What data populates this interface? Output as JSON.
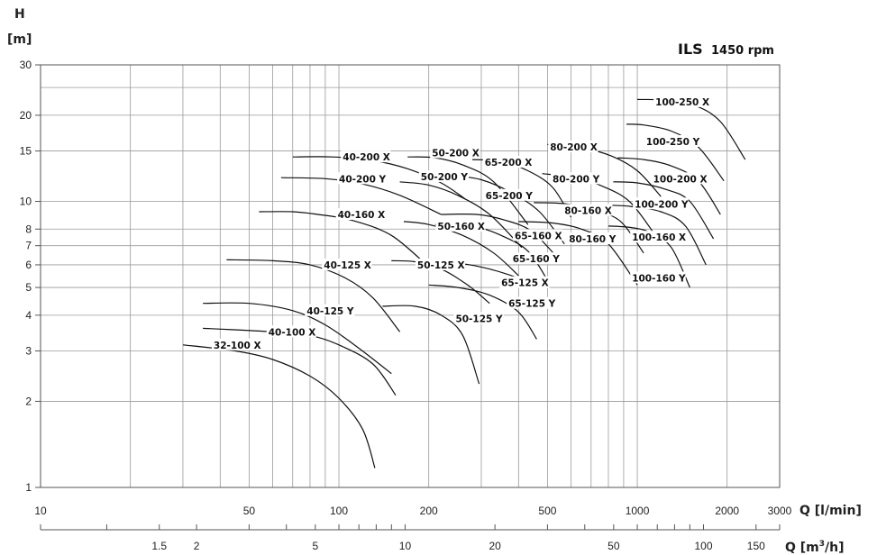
{
  "chart_data": {
    "type": "line",
    "title": "ILS",
    "subtitle": "1450 rpm",
    "y_axis": {
      "label_top": "H",
      "label_unit": "[m]",
      "scale": "log",
      "range": [
        1,
        30
      ],
      "ticks": [
        1,
        2,
        3,
        4,
        5,
        6,
        7,
        8,
        10,
        15,
        20,
        30
      ],
      "tick_labels": [
        "1",
        "2",
        "3",
        "4",
        "5",
        "6",
        "7",
        "8",
        "10",
        "15",
        "20",
        "30"
      ],
      "extra_gridlines": [
        25
      ]
    },
    "x_axis": {
      "label": "Q [l/min]",
      "scale": "log",
      "range": [
        10,
        3000
      ],
      "labeled_ticks": [
        10,
        50,
        100,
        200,
        500,
        1000,
        2000,
        3000
      ],
      "tick_labels": [
        "10",
        "50",
        "100",
        "200",
        "500",
        "1000",
        "2000",
        "3000"
      ],
      "gridlines": [
        20,
        30,
        40,
        50,
        60,
        70,
        80,
        90,
        100,
        200,
        300,
        400,
        500,
        600,
        700,
        800,
        900,
        1000,
        2000
      ]
    },
    "x2_axis": {
      "label": "Q [m³/h]",
      "label_base": "Q [m",
      "label_sup": "3",
      "label_tail": "/h]",
      "scale": "log",
      "ticks": [
        1,
        1.5,
        2,
        3,
        4,
        5,
        6,
        7,
        8,
        9,
        10,
        20,
        30,
        40,
        50,
        60,
        70,
        80,
        90,
        100,
        150
      ],
      "labeled_ticks": [
        1.5,
        2,
        5,
        10,
        20,
        50,
        100,
        150
      ],
      "tick_labels": [
        "1.5",
        "2",
        "5",
        "10",
        "20",
        "50",
        "100",
        "150"
      ]
    },
    "series": [
      {
        "name": "32-100 X",
        "points": [
          [
            30,
            3.15
          ],
          [
            45,
            3.0
          ],
          [
            60,
            2.8
          ],
          [
            80,
            2.45
          ],
          [
            100,
            2.05
          ],
          [
            120,
            1.6
          ],
          [
            132,
            1.17
          ]
        ],
        "label_at": [
          38,
          3.15
        ]
      },
      {
        "name": "40-100 X",
        "points": [
          [
            35,
            3.6
          ],
          [
            60,
            3.5
          ],
          [
            80,
            3.4
          ],
          [
            100,
            3.15
          ],
          [
            130,
            2.7
          ],
          [
            155,
            2.1
          ]
        ],
        "label_at": [
          58,
          3.5
        ]
      },
      {
        "name": "40-125 Y",
        "points": [
          [
            35,
            4.4
          ],
          [
            50,
            4.4
          ],
          [
            70,
            4.15
          ],
          [
            90,
            3.7
          ],
          [
            115,
            3.1
          ],
          [
            150,
            2.5
          ]
        ],
        "label_at": [
          78,
          4.15
        ]
      },
      {
        "name": "40-125 X",
        "points": [
          [
            42,
            6.25
          ],
          [
            60,
            6.2
          ],
          [
            80,
            6.0
          ],
          [
            105,
            5.4
          ],
          [
            130,
            4.6
          ],
          [
            160,
            3.5
          ]
        ],
        "label_at": [
          89,
          6.0
        ]
      },
      {
        "name": "40-160 X",
        "points": [
          [
            54,
            9.2
          ],
          [
            70,
            9.2
          ],
          [
            85,
            9.0
          ],
          [
            110,
            8.6
          ],
          [
            150,
            7.6
          ],
          [
            200,
            5.9
          ]
        ],
        "label_at": [
          99,
          9.0
        ]
      },
      {
        "name": "40-200 Y",
        "points": [
          [
            64,
            12.1
          ],
          [
            90,
            12.0
          ],
          [
            120,
            11.5
          ],
          [
            160,
            10.5
          ],
          [
            220,
            9.0
          ]
        ],
        "label_at": [
          100,
          12.0
        ]
      },
      {
        "name": "40-200 X",
        "points": [
          [
            70,
            14.3
          ],
          [
            95,
            14.3
          ],
          [
            130,
            13.9
          ],
          [
            170,
            13.0
          ],
          [
            220,
            11.6
          ],
          [
            265,
            10.2
          ]
        ],
        "label_at": [
          103,
          14.3
        ]
      },
      {
        "name": "50-125 Y",
        "points": [
          [
            140,
            4.3
          ],
          [
            180,
            4.3
          ],
          [
            220,
            4.0
          ],
          [
            260,
            3.4
          ],
          [
            295,
            2.3
          ]
        ],
        "label_at": [
          246,
          3.9
        ]
      },
      {
        "name": "50-125 X",
        "points": [
          [
            150,
            6.2
          ],
          [
            180,
            6.15
          ],
          [
            220,
            5.8
          ],
          [
            270,
            5.1
          ],
          [
            320,
            4.4
          ]
        ],
        "label_at": [
          183,
          6.0
        ]
      },
      {
        "name": "50-160 X",
        "points": [
          [
            165,
            8.5
          ],
          [
            200,
            8.3
          ],
          [
            260,
            7.6
          ],
          [
            330,
            6.6
          ],
          [
            400,
            5.5
          ]
        ],
        "label_at": [
          214,
          8.2
        ]
      },
      {
        "name": "50-200 Y",
        "points": [
          [
            160,
            11.7
          ],
          [
            200,
            11.4
          ],
          [
            250,
            10.5
          ],
          [
            320,
            9.0
          ],
          [
            410,
            6.9
          ]
        ],
        "label_at": [
          188,
          12.2
        ]
      },
      {
        "name": "50-200 X",
        "points": [
          [
            170,
            14.3
          ],
          [
            210,
            14.2
          ],
          [
            260,
            13.4
          ],
          [
            330,
            11.7
          ],
          [
            430,
            8.3
          ]
        ],
        "label_at": [
          205,
          14.8
        ]
      },
      {
        "name": "65-125 Y",
        "points": [
          [
            200,
            5.1
          ],
          [
            250,
            5.0
          ],
          [
            320,
            4.7
          ],
          [
            400,
            4.1
          ],
          [
            460,
            3.3
          ]
        ],
        "label_at": [
          370,
          4.4
        ]
      },
      {
        "name": "65-125 X",
        "points": [
          [
            210,
            6.1
          ],
          [
            260,
            6.05
          ],
          [
            320,
            5.8
          ],
          [
            400,
            5.4
          ]
        ],
        "label_at": [
          350,
          5.2
        ]
      },
      {
        "name": "65-160 Y",
        "points": [
          [
            210,
            8.3
          ],
          [
            280,
            8.2
          ],
          [
            350,
            7.6
          ],
          [
            430,
            6.7
          ],
          [
            500,
            5.3
          ]
        ],
        "label_at": [
          382,
          6.3
        ]
      },
      {
        "name": "65-160 X",
        "points": [
          [
            220,
            9.0
          ],
          [
            290,
            9.0
          ],
          [
            360,
            8.6
          ],
          [
            440,
            7.9
          ],
          [
            530,
            6.5
          ]
        ],
        "label_at": [
          388,
          7.6
        ]
      },
      {
        "name": "65-200 Y",
        "points": [
          [
            240,
            12.3
          ],
          [
            300,
            11.9
          ],
          [
            380,
            10.7
          ],
          [
            470,
            9.2
          ],
          [
            570,
            7.1
          ]
        ],
        "label_at": [
          310,
          10.5
        ]
      },
      {
        "name": "65-200 X",
        "points": [
          [
            280,
            14.0
          ],
          [
            350,
            13.8
          ],
          [
            430,
            12.8
          ],
          [
            520,
            11.2
          ],
          [
            600,
            8.8
          ]
        ],
        "label_at": [
          308,
          13.7
        ]
      },
      {
        "name": "80-160 Y",
        "points": [
          [
            400,
            8.5
          ],
          [
            520,
            8.4
          ],
          [
            650,
            8.0
          ],
          [
            800,
            7.1
          ],
          [
            1000,
            5.1
          ]
        ],
        "label_at": [
          590,
          7.4
        ]
      },
      {
        "name": "80-160 X",
        "points": [
          [
            450,
            9.9
          ],
          [
            580,
            9.8
          ],
          [
            720,
            9.3
          ],
          [
            880,
            8.5
          ],
          [
            1050,
            6.6
          ]
        ],
        "label_at": [
          570,
          9.3
        ]
      },
      {
        "name": "80-200 Y",
        "points": [
          [
            480,
            12.5
          ],
          [
            620,
            12.1
          ],
          [
            780,
            11.2
          ],
          [
            950,
            9.9
          ],
          [
            1150,
            7.6
          ]
        ],
        "label_at": [
          520,
          12.0
        ]
      },
      {
        "name": "80-200 X",
        "points": [
          [
            500,
            15.8
          ],
          [
            650,
            15.4
          ],
          [
            820,
            14.4
          ],
          [
            1000,
            12.8
          ],
          [
            1200,
            10.4
          ]
        ],
        "label_at": [
          510,
          15.5
        ]
      },
      {
        "name": "100-160 Y",
        "points": [
          [
            800,
            8.2
          ],
          [
            950,
            8.1
          ],
          [
            1100,
            7.8
          ],
          [
            1300,
            6.9
          ],
          [
            1500,
            5.0
          ]
        ],
        "label_at": [
          960,
          5.4
        ]
      },
      {
        "name": "100-160 X",
        "points": [
          [
            780,
            9.7
          ],
          [
            950,
            9.6
          ],
          [
            1200,
            9.2
          ],
          [
            1450,
            8.2
          ],
          [
            1700,
            6.0
          ]
        ],
        "label_at": [
          960,
          7.5
        ]
      },
      {
        "name": "100-200 Y",
        "points": [
          [
            830,
            11.7
          ],
          [
            1000,
            11.6
          ],
          [
            1250,
            11.0
          ],
          [
            1500,
            10.0
          ],
          [
            1800,
            7.4
          ]
        ],
        "label_at": [
          980,
          9.8
        ]
      },
      {
        "name": "100-200 X",
        "points": [
          [
            860,
            14.2
          ],
          [
            1050,
            14.0
          ],
          [
            1300,
            13.3
          ],
          [
            1600,
            11.8
          ],
          [
            1900,
            9.0
          ]
        ],
        "label_at": [
          1130,
          12.0
        ]
      },
      {
        "name": "100-250 Y",
        "points": [
          [
            920,
            18.6
          ],
          [
            1050,
            18.5
          ],
          [
            1300,
            17.6
          ],
          [
            1600,
            15.5
          ],
          [
            1950,
            11.8
          ]
        ],
        "label_at": [
          1070,
          16.2
        ]
      },
      {
        "name": "100-250 X",
        "points": [
          [
            1000,
            22.7
          ],
          [
            1250,
            22.6
          ],
          [
            1550,
            21.7
          ],
          [
            1900,
            19.0
          ],
          [
            2300,
            14.0
          ]
        ],
        "label_at": [
          1150,
          22.3
        ]
      }
    ]
  }
}
